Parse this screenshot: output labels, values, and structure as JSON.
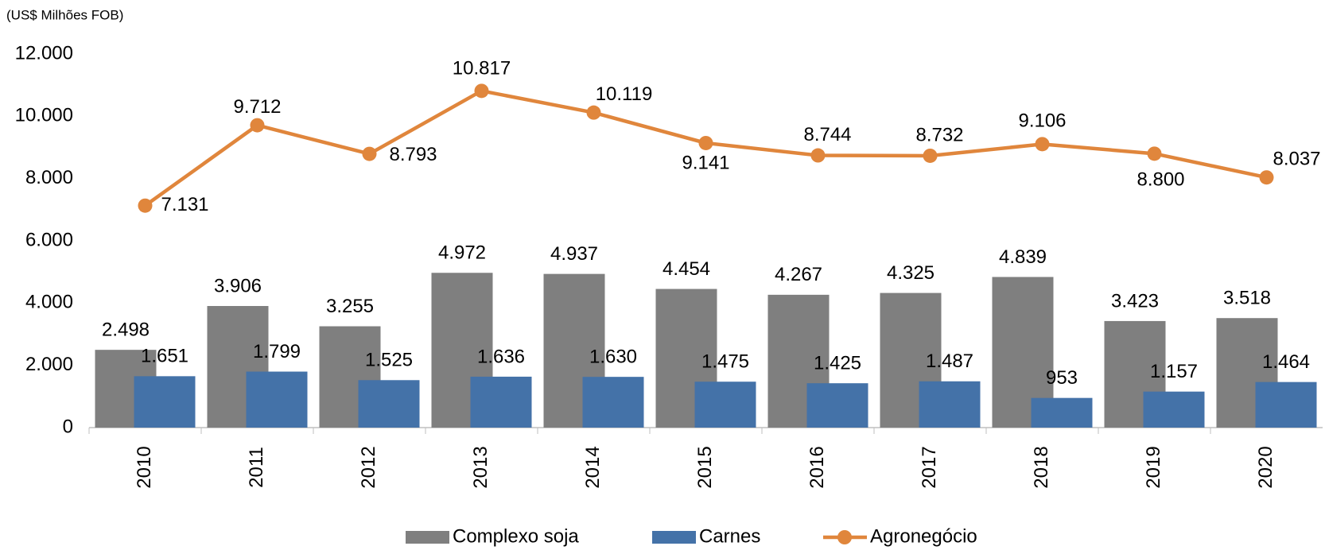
{
  "chart_data": {
    "type": "bar_line",
    "y_axis_label": "(US$ Milhões FOB)",
    "categories": [
      "2010",
      "2011",
      "2012",
      "2013",
      "2014",
      "2015",
      "2016",
      "2017",
      "2018",
      "2019",
      "2020"
    ],
    "series": [
      {
        "name": "Complexo soja",
        "type": "bar",
        "color": "#7f7f7f",
        "values": [
          2498,
          3906,
          3255,
          4972,
          4937,
          4454,
          4267,
          4325,
          4839,
          3423,
          3518
        ],
        "value_labels": [
          "2.498",
          "3.906",
          "3.255",
          "4.972",
          "4.937",
          "4.454",
          "4.267",
          "4.325",
          "4.839",
          "3.423",
          "3.518"
        ]
      },
      {
        "name": "Carnes",
        "type": "bar",
        "color": "#4472a8",
        "values": [
          1651,
          1799,
          1525,
          1636,
          1630,
          1475,
          1425,
          1487,
          953,
          1157,
          1464
        ],
        "value_labels": [
          "1.651",
          "1.799",
          "1.525",
          "1.636",
          "1.630",
          "1.475",
          "1.425",
          "1.487",
          "953",
          "1.157",
          "1.464"
        ]
      },
      {
        "name": "Agronegócio",
        "type": "line",
        "color": "#e0863c",
        "values": [
          7131,
          9712,
          8793,
          10817,
          10119,
          9141,
          8744,
          8732,
          9106,
          8800,
          8037
        ],
        "value_labels": [
          "7.131",
          "9.712",
          "8.793",
          "10.817",
          "10.119",
          "9.141",
          "8.744",
          "8.732",
          "9.106",
          "8.800",
          "8.037"
        ]
      }
    ],
    "ylim": [
      0,
      12000
    ],
    "yticks": [
      0,
      {
        "value": 2000,
        "label": "2.000"
      },
      {
        "value": 4000,
        "label": "4.000"
      },
      {
        "value": 6000,
        "label": "6.000"
      },
      {
        "value": 8000,
        "label": "8.000"
      },
      {
        "value": 10000,
        "label": "10.000"
      },
      {
        "value": 12000,
        "label": "12.000"
      }
    ],
    "legend": "bottom",
    "grid": false
  }
}
